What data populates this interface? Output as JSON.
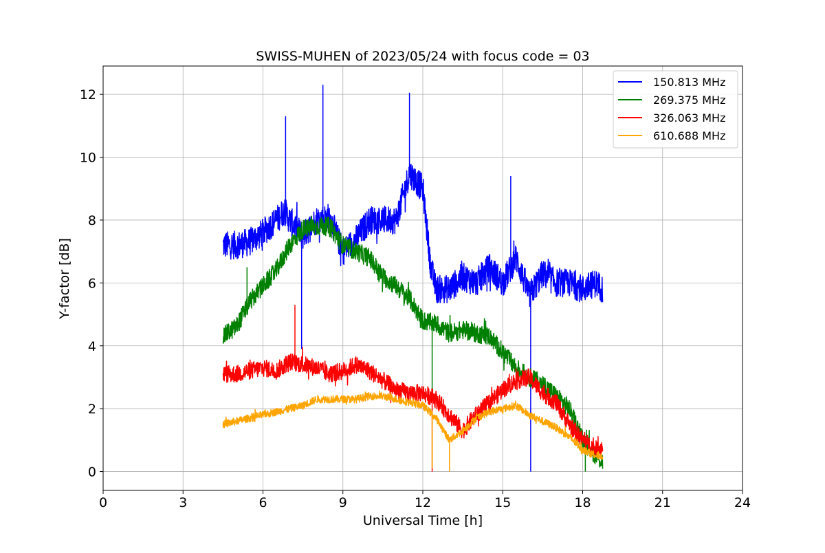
{
  "chart_data": {
    "type": "line",
    "title": "SWISS-MUHEN of 2023/05/24 with focus code = 03",
    "xlabel": "Universal Time [h]",
    "ylabel": "Y-factor [dB]",
    "xlim": [
      0,
      24
    ],
    "ylim": [
      -0.6,
      12.9
    ],
    "xticks": [
      0,
      3,
      6,
      9,
      12,
      15,
      18,
      21,
      24
    ],
    "yticks": [
      0,
      2,
      4,
      6,
      8,
      10,
      12
    ],
    "xtick_labels": [
      "0",
      "3",
      "6",
      "9",
      "12",
      "15",
      "18",
      "21",
      "24"
    ],
    "ytick_labels": [
      "0",
      "2",
      "4",
      "6",
      "8",
      "10",
      "12"
    ],
    "grid": true,
    "legend_position": "top-right",
    "series": [
      {
        "name": "150.813 MHz",
        "color": "#0000ff",
        "noise": 0.45,
        "x": [
          4.5,
          5.0,
          5.5,
          6.0,
          6.5,
          6.8,
          7.0,
          7.5,
          8.0,
          8.5,
          9.0,
          9.5,
          10.0,
          10.5,
          11.0,
          11.5,
          12.0,
          12.3,
          12.5,
          13.0,
          13.5,
          14.0,
          14.5,
          15.0,
          15.5,
          16.0,
          16.5,
          17.0,
          17.5,
          18.0,
          18.5,
          18.75
        ],
        "y": [
          7.2,
          7.2,
          7.3,
          7.6,
          8.0,
          8.3,
          8.0,
          7.5,
          8.0,
          8.1,
          7.0,
          7.4,
          8.0,
          8.0,
          8.0,
          9.5,
          9.0,
          6.5,
          5.8,
          5.8,
          6.2,
          6.0,
          6.5,
          6.0,
          6.8,
          5.6,
          6.3,
          6.0,
          6.0,
          5.8,
          6.0,
          5.8
        ],
        "spikes": [
          [
            6.85,
            11.3
          ],
          [
            7.45,
            3.9
          ],
          [
            8.25,
            12.3
          ],
          [
            11.5,
            12.05
          ],
          [
            15.3,
            9.4
          ],
          [
            16.05,
            0.0
          ]
        ]
      },
      {
        "name": "269.375 MHz",
        "color": "#008000",
        "noise": 0.3,
        "x": [
          4.5,
          5.0,
          5.5,
          6.0,
          6.5,
          7.0,
          7.5,
          8.0,
          8.5,
          9.0,
          9.5,
          10.0,
          10.5,
          11.0,
          11.5,
          12.0,
          12.5,
          13.0,
          13.5,
          14.0,
          14.5,
          15.0,
          15.5,
          16.0,
          16.5,
          17.0,
          17.5,
          18.0,
          18.5,
          18.75
        ],
        "y": [
          4.3,
          4.6,
          5.4,
          5.9,
          6.4,
          7.2,
          7.7,
          7.8,
          7.8,
          7.2,
          7.0,
          6.8,
          6.2,
          5.9,
          5.5,
          4.8,
          4.7,
          4.4,
          4.5,
          4.4,
          4.3,
          3.8,
          3.3,
          3.0,
          2.8,
          2.4,
          2.0,
          1.0,
          0.5,
          0.3
        ],
        "spikes": [
          [
            5.4,
            6.5
          ],
          [
            12.35,
            2.4
          ],
          [
            18.1,
            0.0
          ]
        ]
      },
      {
        "name": "326.063 MHz",
        "color": "#ff0000",
        "noise": 0.28,
        "x": [
          4.5,
          5.0,
          5.5,
          6.0,
          6.5,
          7.0,
          7.5,
          8.0,
          8.5,
          9.0,
          9.5,
          10.0,
          10.5,
          11.0,
          11.5,
          12.0,
          12.5,
          13.0,
          13.5,
          14.0,
          14.5,
          15.0,
          15.5,
          16.0,
          16.5,
          17.0,
          17.5,
          18.0,
          18.5,
          18.75
        ],
        "y": [
          3.1,
          3.1,
          3.2,
          3.3,
          3.2,
          3.5,
          3.4,
          3.3,
          3.1,
          3.2,
          3.4,
          3.2,
          2.9,
          2.6,
          2.5,
          2.5,
          2.3,
          1.8,
          1.3,
          1.8,
          2.2,
          2.6,
          2.9,
          3.0,
          2.5,
          2.2,
          1.5,
          1.0,
          0.7,
          0.8
        ],
        "spikes": [
          [
            7.2,
            5.3
          ],
          [
            12.35,
            0.0
          ]
        ]
      },
      {
        "name": "610.688 MHz",
        "color": "#ffa500",
        "noise": 0.12,
        "x": [
          4.5,
          5.0,
          5.5,
          6.0,
          6.5,
          7.0,
          7.5,
          8.0,
          8.5,
          9.0,
          9.5,
          10.0,
          10.5,
          11.0,
          11.5,
          12.0,
          12.5,
          13.0,
          13.5,
          14.0,
          14.5,
          15.0,
          15.5,
          16.0,
          16.5,
          17.0,
          17.5,
          18.0,
          18.5,
          18.75
        ],
        "y": [
          1.5,
          1.6,
          1.7,
          1.8,
          1.9,
          2.0,
          2.1,
          2.3,
          2.3,
          2.3,
          2.3,
          2.4,
          2.4,
          2.3,
          2.2,
          2.1,
          1.7,
          1.0,
          1.3,
          1.7,
          1.9,
          2.0,
          2.1,
          1.8,
          1.6,
          1.4,
          1.1,
          0.7,
          0.5,
          0.5
        ],
        "spikes": [
          [
            12.35,
            0.1
          ],
          [
            13.0,
            0.0
          ]
        ]
      }
    ]
  }
}
